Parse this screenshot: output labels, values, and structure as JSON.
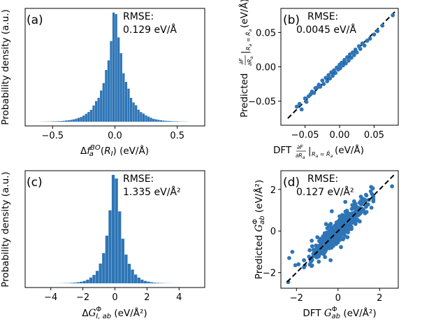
{
  "chart_data": [
    {
      "panel": "(a)",
      "type": "histogram",
      "xlabel": "Δf_a^BO(R_I) (eV/Å)",
      "ylabel": "Probability density (a.u.)",
      "xlim": [
        -0.72,
        0.72
      ],
      "xticks": [
        -0.5,
        0.0,
        0.5
      ],
      "xtick_labels": [
        "−0.5",
        "0.0",
        "0.5"
      ],
      "distribution": {
        "shape": "laplace-like",
        "center": 0.0,
        "scale": 0.085,
        "bin_width": 0.02,
        "range": [
          -0.6,
          0.6
        ]
      },
      "annotation": [
        "RMSE:",
        "0.129 eV/Å"
      ],
      "color": "#2e75b6"
    },
    {
      "panel": "(b)",
      "type": "scatter",
      "xlabel": "DFT ∂F/∂R_a |R_a = R̂_a (eV/Å)",
      "ylabel": "Predicted ∂F/∂R_a |R_a = R̂_a (eV/Å)",
      "xlim": [
        -0.085,
        0.085
      ],
      "ylim": [
        -0.085,
        0.085
      ],
      "xticks": [
        -0.05,
        0.0,
        0.05
      ],
      "xtick_labels": [
        "−0.05",
        "0.00",
        "0.05"
      ],
      "yticks": [
        -0.05,
        0.0,
        0.05
      ],
      "ytick_labels": [
        "−0.05",
        "0.00",
        "0.05"
      ],
      "reference_line": "y = x",
      "annotation": [
        "RMSE:",
        "0.0045 eV/Å"
      ],
      "points": [
        [
          -0.062,
          -0.058
        ],
        [
          -0.058,
          -0.054
        ],
        [
          -0.055,
          -0.062
        ],
        [
          -0.05,
          -0.046
        ],
        [
          -0.048,
          -0.051
        ],
        [
          -0.045,
          -0.043
        ],
        [
          -0.042,
          -0.04
        ],
        [
          -0.04,
          -0.036
        ],
        [
          -0.037,
          -0.038
        ],
        [
          -0.035,
          -0.031
        ],
        [
          -0.032,
          -0.03
        ],
        [
          -0.03,
          -0.026
        ],
        [
          -0.028,
          -0.029
        ],
        [
          -0.025,
          -0.02
        ],
        [
          -0.023,
          -0.025
        ],
        [
          -0.02,
          -0.016
        ],
        [
          -0.018,
          -0.021
        ],
        [
          -0.016,
          -0.012
        ],
        [
          -0.014,
          -0.017
        ],
        [
          -0.012,
          -0.008
        ],
        [
          -0.01,
          -0.013
        ],
        [
          -0.008,
          -0.005
        ],
        [
          -0.006,
          -0.009
        ],
        [
          -0.004,
          -0.001
        ],
        [
          -0.002,
          -0.004
        ],
        [
          0.0,
          0.003
        ],
        [
          0.001,
          -0.002
        ],
        [
          0.003,
          0.006
        ],
        [
          0.005,
          0.002
        ],
        [
          0.007,
          0.01
        ],
        [
          0.009,
          0.005
        ],
        [
          0.011,
          0.014
        ],
        [
          0.013,
          0.009
        ],
        [
          0.015,
          0.018
        ],
        [
          0.017,
          0.013
        ],
        [
          0.019,
          0.021
        ],
        [
          0.021,
          0.017
        ],
        [
          0.023,
          0.025
        ],
        [
          0.025,
          0.021
        ],
        [
          0.028,
          0.03
        ],
        [
          0.03,
          0.026
        ],
        [
          0.033,
          0.034
        ],
        [
          0.036,
          0.031
        ],
        [
          0.04,
          0.038
        ],
        [
          0.044,
          0.041
        ],
        [
          0.05,
          0.047
        ],
        [
          0.055,
          0.052
        ],
        [
          0.062,
          0.06
        ],
        [
          0.077,
          0.075
        ]
      ],
      "color": "#2e75b6"
    },
    {
      "panel": "(c)",
      "type": "histogram",
      "xlabel": "ΔG^Φ_I,ab (eV/Å²)",
      "ylabel": "Probability density (a.u.)",
      "xlim": [
        -5.6,
        5.6
      ],
      "xticks": [
        -4,
        -2,
        0,
        2,
        4
      ],
      "xtick_labels": [
        "−4",
        "−2",
        "0",
        "2",
        "4"
      ],
      "distribution": {
        "shape": "laplace-like (sharp)",
        "center": 0.0,
        "scale": 0.48,
        "bin_width": 0.2,
        "range": [
          -5.0,
          5.0
        ]
      },
      "annotation": [
        "RMSE:",
        "1.335 eV/Å²"
      ],
      "color": "#2e75b6"
    },
    {
      "panel": "(d)",
      "type": "scatter",
      "xlabel": "DFT G^Φ_ab (eV/Å²)",
      "ylabel": "Predicted G^Φ_ab (eV/Å²)",
      "xlim": [
        -2.75,
        2.9
      ],
      "ylim": [
        -2.75,
        2.9
      ],
      "xticks": [
        -2,
        0,
        2
      ],
      "xtick_labels": [
        "−2",
        "0",
        "2"
      ],
      "yticks": [
        -2,
        0,
        2
      ],
      "ytick_labels": [
        "−2",
        "0",
        "2"
      ],
      "reference_line": "y = x",
      "annotation": [
        "RMSE:",
        "0.127 eV/Å²"
      ],
      "point_cloud": {
        "count": 520,
        "x_center": 0.0,
        "x_spread": 0.7,
        "slope": 0.95,
        "noise": 0.28,
        "x_range": [
          -2.4,
          1.7
        ]
      },
      "extra_points": [
        [
          -2.35,
          -1.3
        ],
        [
          -2.2,
          -1.0
        ],
        [
          -1.9,
          -1.6
        ],
        [
          1.1,
          1.65
        ],
        [
          2.6,
          2.15
        ],
        [
          0.35,
          1.4
        ],
        [
          -0.3,
          0.95
        ]
      ],
      "color": "#2e75b6"
    }
  ]
}
